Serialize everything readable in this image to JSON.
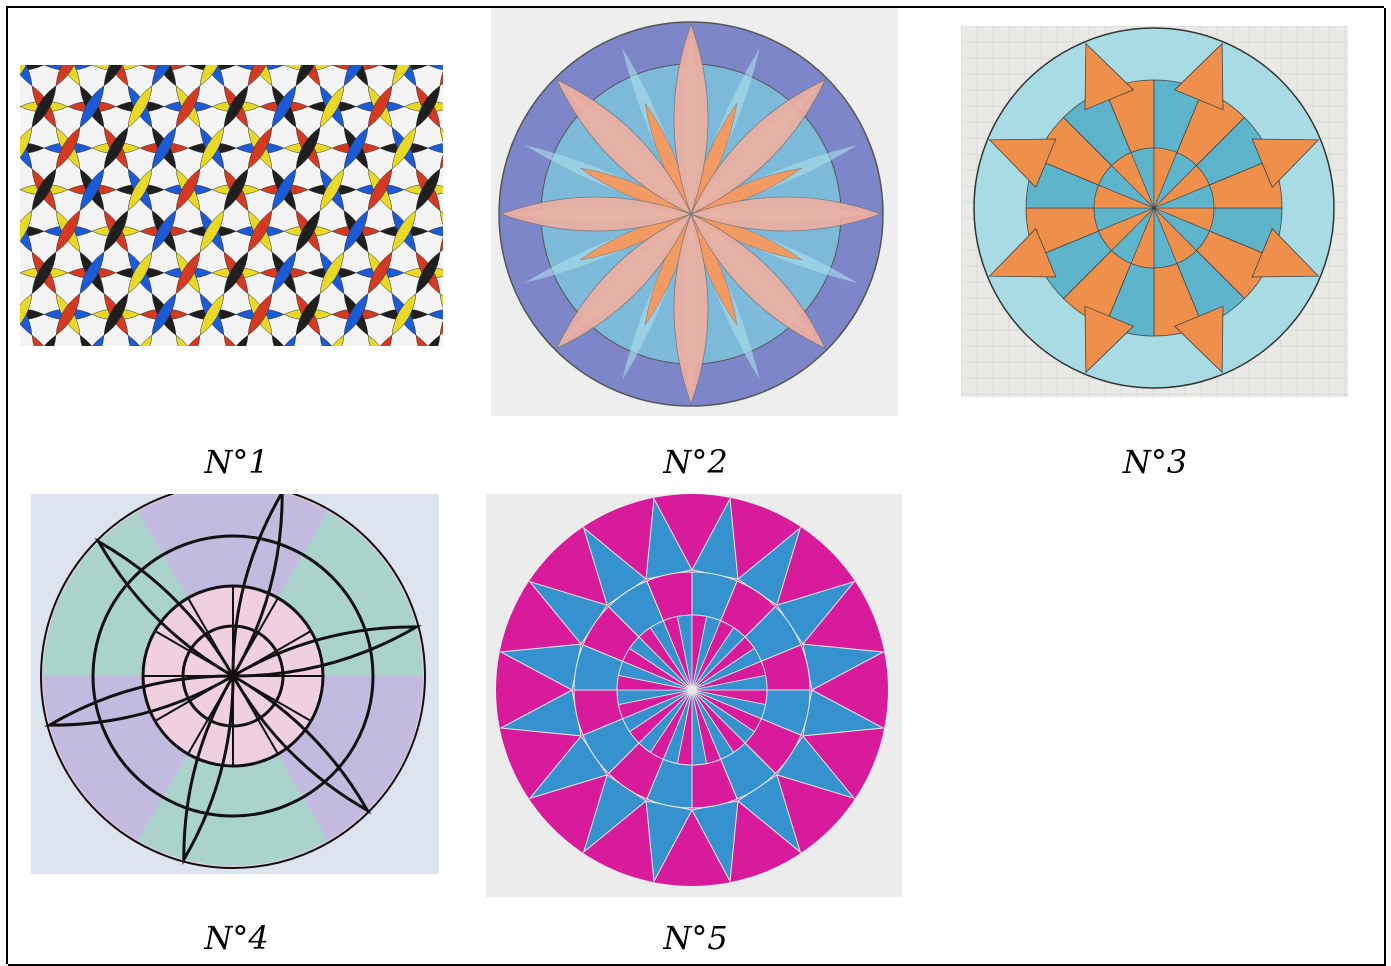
{
  "captions": {
    "n1": "N°1",
    "n2": "N°2",
    "n3": "N°3",
    "n4": "N°4",
    "n5": "N°5"
  },
  "colors": {
    "grid": "#000000",
    "rosace1": [
      "#d43a22",
      "#1f1f1f",
      "#1d5bd6",
      "#e8d928"
    ],
    "rosace2": [
      "#f0b0a0",
      "#f29a63",
      "#7db9d8",
      "#7d86c9",
      "#aee0ec"
    ],
    "rosace3": [
      "#ee8f4b",
      "#5eb5cb",
      "#a8dbe3"
    ],
    "rosace4": [
      "#98d5c6",
      "#b6b4df",
      "#f0cfe0",
      "#111111"
    ],
    "rosace5": [
      "#d81b9b",
      "#3592cf"
    ]
  }
}
